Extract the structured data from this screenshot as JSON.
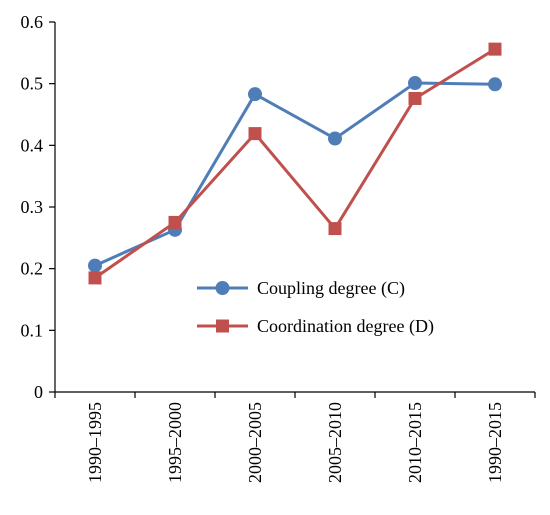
{
  "chart_data": {
    "type": "line",
    "title": "",
    "xlabel": "",
    "ylabel": "",
    "categories": [
      "1990–1995",
      "1995–2000",
      "2000–2005",
      "2005–2010",
      "2010–2015",
      "1990–2015"
    ],
    "ylim": [
      0,
      0.6
    ],
    "yticks": [
      "0",
      "0.1",
      "0.2",
      "0.3",
      "0.4",
      "0.5",
      "0.6"
    ],
    "grid": false,
    "legend_position": "center-right",
    "series": [
      {
        "name": "Coupling degree (C)",
        "color": "#4F7DB8",
        "marker": "circle",
        "values": [
          0.205,
          0.263,
          0.483,
          0.411,
          0.501,
          0.499
        ]
      },
      {
        "name": "Coordination degree (D)",
        "color": "#C0504D",
        "marker": "square",
        "values": [
          0.185,
          0.275,
          0.419,
          0.265,
          0.476,
          0.556
        ]
      }
    ]
  }
}
